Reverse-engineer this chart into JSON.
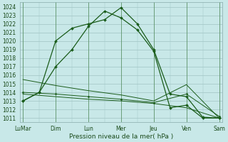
{
  "bg_color": "#c8e8e8",
  "grid_color": "#a0c4c4",
  "line_color": "#1a5c1a",
  "marker_color": "#1a5c1a",
  "xlabel": "Pression niveau de la mer( hPa )",
  "ylim_min": 1010.5,
  "ylim_max": 1024.5,
  "ytick_min": 1011,
  "ytick_max": 1024,
  "xtick_labels": [
    "LuMar",
    "Dim",
    "Lun",
    "Mer",
    "Jeu",
    "Ven",
    "Sam"
  ],
  "xtick_positions": [
    0,
    1,
    2,
    3,
    4,
    5,
    6
  ],
  "series1_x": [
    0,
    0.5,
    1,
    1.5,
    2,
    2.5,
    3,
    3.5,
    4,
    4.5,
    5,
    5.5,
    6
  ],
  "series1_y": [
    1013,
    1014,
    1020,
    1021.5,
    1022,
    1022.5,
    1023.9,
    1022.0,
    1019.0,
    1013.8,
    1013.5,
    1011.1,
    1011.0
  ],
  "series2_x": [
    0,
    0.5,
    1,
    1.5,
    2,
    2.5,
    3,
    3.5,
    4,
    4.5,
    5,
    5.5,
    6
  ],
  "series2_y": [
    1013,
    1014,
    1017,
    1019.0,
    1021.7,
    1023.5,
    1022.7,
    1021.3,
    1018.8,
    1012.2,
    1012.5,
    1011.0,
    1011.0
  ],
  "series3_x": [
    0,
    1,
    2,
    3,
    4,
    5,
    6
  ],
  "series3_y": [
    1013.8,
    1013.5,
    1013.2,
    1013.0,
    1012.7,
    1012.2,
    1011.0
  ],
  "series4_x": [
    0,
    1,
    2,
    3,
    4,
    5,
    6
  ],
  "series4_y": [
    1014.0,
    1013.8,
    1013.5,
    1013.2,
    1012.8,
    1013.8,
    1011.2
  ],
  "series5_x": [
    0,
    1,
    2,
    3,
    4,
    5,
    6
  ],
  "series5_y": [
    1015.5,
    1014.8,
    1014.2,
    1013.7,
    1013.0,
    1014.9,
    1011.0
  ],
  "fontsize_tick": 5.5,
  "fontsize_xlabel": 6.5,
  "tick_color": "#1a4a1a"
}
